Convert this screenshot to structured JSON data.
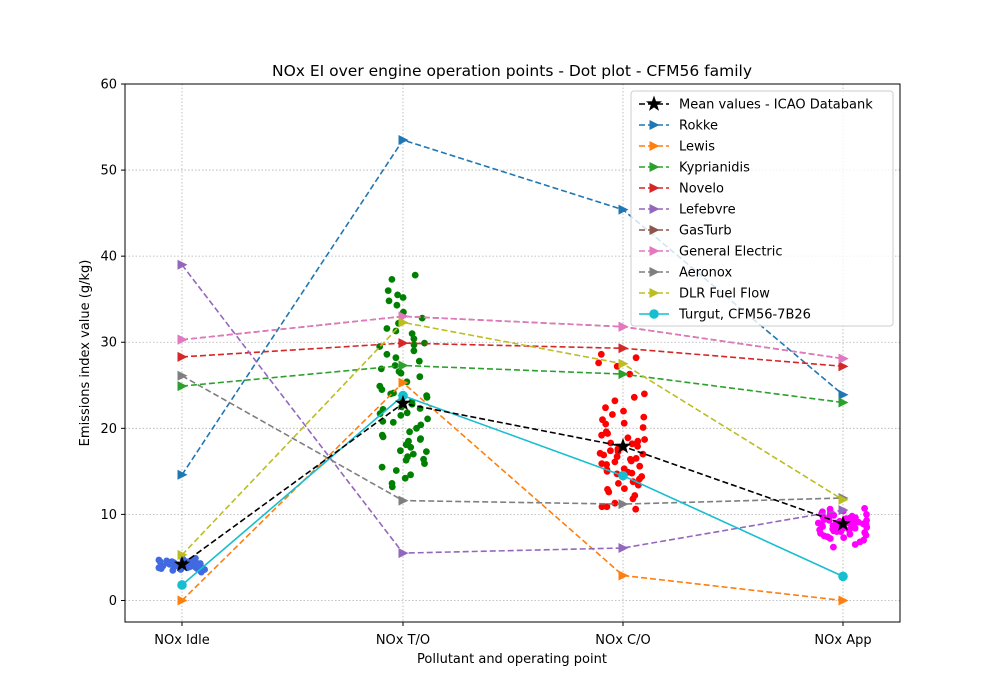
{
  "chart_data": {
    "type": "scatter",
    "title": "NOx EI over engine operation points - Dot plot - CFM56 family",
    "xlabel": "Pollutant and operating point",
    "ylabel": "Emissions index value (g/kg)",
    "categories": [
      "NOx Idle",
      "NOx T/O",
      "NOx C/O",
      "NOx App"
    ],
    "ylim": [
      -2.5,
      60
    ],
    "yticks": [
      0,
      10,
      20,
      30,
      40,
      50,
      60
    ],
    "grid": true,
    "legend_position": "top-right",
    "dots": [
      {
        "category": "NOx Idle",
        "color": "#4169e1",
        "values": [
          4.2,
          3.8,
          4.5,
          4.0,
          4.3,
          3.9,
          4.6,
          4.1,
          3.7,
          4.4,
          4.2,
          4.0,
          3.6,
          4.8,
          4.3,
          4.1,
          3.9,
          4.5,
          4.2,
          3.8,
          4.0,
          4.4,
          4.7,
          3.5,
          4.1,
          4.3,
          4.0,
          3.9,
          4.6,
          4.2,
          4.1,
          3.8,
          4.5,
          4.0,
          4.3,
          3.7,
          4.2,
          4.4,
          3.9,
          4.1,
          4.0,
          4.3,
          3.8,
          4.6,
          4.2,
          3.3,
          4.9,
          4.1,
          4.0,
          3.6
        ]
      },
      {
        "category": "NOx T/O",
        "color": "#008000",
        "values": [
          37.8,
          37.3,
          36.0,
          35.2,
          34.8,
          34.3,
          33.5,
          32.8,
          32.2,
          31.6,
          31.0,
          30.4,
          29.9,
          29.5,
          29.0,
          28.6,
          28.2,
          27.8,
          27.3,
          26.9,
          26.4,
          26.0,
          25.4,
          24.9,
          24.5,
          24.1,
          23.8,
          23.5,
          23.1,
          22.8,
          22.5,
          22.2,
          21.8,
          21.5,
          21.1,
          20.8,
          20.4,
          20.0,
          19.6,
          19.2,
          18.8,
          18.5,
          18.1,
          17.8,
          17.4,
          17.0,
          16.7,
          16.3,
          15.9,
          15.5,
          15.1,
          14.6,
          14.2,
          13.6,
          13.2,
          35.5,
          29.7,
          24.0,
          21.7,
          19.0,
          17.3,
          16.4,
          22.3,
          18.7,
          26.6,
          31.3,
          20.7,
          23.6
        ]
      },
      {
        "category": "NOx C/O",
        "color": "#ff0000",
        "values": [
          28.6,
          28.2,
          27.6,
          27.2,
          26.3,
          24.0,
          23.6,
          23.2,
          22.4,
          22.0,
          21.6,
          21.0,
          20.5,
          20.1,
          19.6,
          19.2,
          18.9,
          18.5,
          18.2,
          17.9,
          17.6,
          17.3,
          17.0,
          16.7,
          16.4,
          16.1,
          15.8,
          15.6,
          15.3,
          15.0,
          14.7,
          14.4,
          14.1,
          13.8,
          13.4,
          13.0,
          12.6,
          12.2,
          11.8,
          11.3,
          10.9,
          10.6,
          17.8,
          18.3,
          16.9,
          15.9,
          14.8,
          19.4,
          20.6,
          16.5,
          13.6,
          17.4,
          18.7,
          15.2,
          16.2,
          14.9,
          21.3,
          12.9,
          10.9,
          17.1
        ]
      },
      {
        "category": "NOx App",
        "color": "#ff00ff",
        "values": [
          10.6,
          10.3,
          10.0,
          9.8,
          9.6,
          9.4,
          9.2,
          9.0,
          8.9,
          8.7,
          8.5,
          8.4,
          8.2,
          8.0,
          7.8,
          7.6,
          7.4,
          7.2,
          7.0,
          6.8,
          6.5,
          6.2,
          9.1,
          8.8,
          9.5,
          8.3,
          9.9,
          8.6,
          7.9,
          9.3,
          8.1,
          10.1,
          9.7,
          8.9,
          7.5,
          9.0,
          8.4,
          10.4,
          9.2,
          8.7,
          7.7,
          9.4,
          8.0,
          10.7,
          9.6,
          8.6,
          9.1,
          8.2,
          7.3,
          9.8,
          8.8,
          10.2,
          9.3,
          8.5,
          9.0
        ]
      }
    ],
    "series": [
      {
        "name": "Mean values - ICAO Databank",
        "color": "#000000",
        "dash": "dashed",
        "marker": "star",
        "values": [
          4.2,
          22.9,
          17.9,
          8.9
        ]
      },
      {
        "name": "Rokke",
        "color": "#1f77b4",
        "dash": "dashed",
        "marker": "triangle-right",
        "values": [
          14.6,
          53.5,
          45.4,
          23.9
        ]
      },
      {
        "name": "Lewis",
        "color": "#ff7f0e",
        "dash": "dashed",
        "marker": "triangle-right",
        "values": [
          0.0,
          25.3,
          2.9,
          0.0
        ]
      },
      {
        "name": "Kyprianidis",
        "color": "#2ca02c",
        "dash": "dashed",
        "marker": "triangle-right",
        "values": [
          24.9,
          27.3,
          26.3,
          23.0
        ]
      },
      {
        "name": "Novelo",
        "color": "#d62728",
        "dash": "dashed",
        "marker": "triangle-right",
        "values": [
          28.3,
          29.9,
          29.3,
          27.2
        ]
      },
      {
        "name": "Lefebvre",
        "color": "#9467bd",
        "dash": "dashed",
        "marker": "triangle-right",
        "values": [
          39.0,
          5.5,
          6.1,
          10.5
        ]
      },
      {
        "name": "GasTurb",
        "color": "#8c564b",
        "dash": "dashed",
        "marker": "triangle-right",
        "values": [
          30.3,
          33.0,
          31.8,
          28.1
        ]
      },
      {
        "name": "General Electric",
        "color": "#e377c2",
        "dash": "dashed",
        "marker": "triangle-right",
        "values": [
          30.3,
          33.0,
          31.8,
          28.1
        ]
      },
      {
        "name": "Aeronox",
        "color": "#7f7f7f",
        "dash": "dashed",
        "marker": "triangle-right",
        "values": [
          26.1,
          11.6,
          11.2,
          11.9
        ]
      },
      {
        "name": "DLR Fuel Flow",
        "color": "#bcbd22",
        "dash": "dashed",
        "marker": "triangle-right",
        "values": [
          5.3,
          32.3,
          27.5,
          11.7
        ]
      },
      {
        "name": "Turgut, CFM56-7B26",
        "color": "#17becf",
        "dash": "solid",
        "marker": "circle",
        "values": [
          1.8,
          23.8,
          14.5,
          2.8
        ]
      }
    ]
  }
}
